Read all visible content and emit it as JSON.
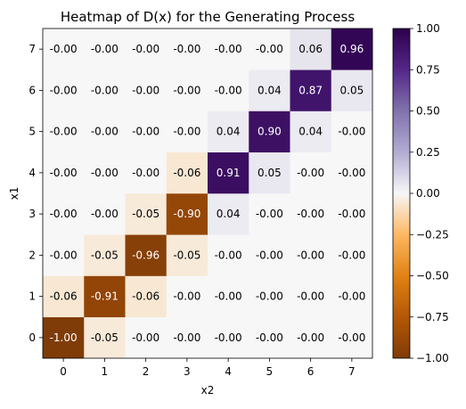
{
  "chart_data": {
    "type": "heatmap",
    "title": "Heatmap of D(x) for the Generating Process",
    "xlabel": "x2",
    "ylabel": "x1",
    "x_categories": [
      "0",
      "1",
      "2",
      "3",
      "4",
      "5",
      "6",
      "7"
    ],
    "y_categories": [
      "0",
      "1",
      "2",
      "3",
      "4",
      "5",
      "6",
      "7"
    ],
    "y_order": "bottom-to-top",
    "rows": [
      {
        "y": "0",
        "values": [
          -1.0,
          -0.05,
          -0.0,
          -0.0,
          -0.0,
          -0.0,
          -0.0,
          -0.0
        ],
        "labels": [
          "-1.00",
          "-0.05",
          "-0.00",
          "-0.00",
          "-0.00",
          "-0.00",
          "-0.00",
          "-0.00"
        ]
      },
      {
        "y": "1",
        "values": [
          -0.06,
          -0.91,
          -0.06,
          -0.0,
          -0.0,
          -0.0,
          -0.0,
          -0.0
        ],
        "labels": [
          "-0.06",
          "-0.91",
          "-0.06",
          "-0.00",
          "-0.00",
          "-0.00",
          "-0.00",
          "-0.00"
        ]
      },
      {
        "y": "2",
        "values": [
          -0.0,
          -0.05,
          -0.96,
          -0.05,
          -0.0,
          -0.0,
          -0.0,
          -0.0
        ],
        "labels": [
          "-0.00",
          "-0.05",
          "-0.96",
          "-0.05",
          "-0.00",
          "-0.00",
          "-0.00",
          "-0.00"
        ]
      },
      {
        "y": "3",
        "values": [
          -0.0,
          -0.0,
          -0.05,
          -0.9,
          0.04,
          -0.0,
          -0.0,
          -0.0
        ],
        "labels": [
          "-0.00",
          "-0.00",
          "-0.05",
          "-0.90",
          "0.04",
          "-0.00",
          "-0.00",
          "-0.00"
        ]
      },
      {
        "y": "4",
        "values": [
          -0.0,
          -0.0,
          -0.0,
          -0.06,
          0.91,
          0.05,
          -0.0,
          -0.0
        ],
        "labels": [
          "-0.00",
          "-0.00",
          "-0.00",
          "-0.06",
          "0.91",
          "0.05",
          "-0.00",
          "-0.00"
        ]
      },
      {
        "y": "5",
        "values": [
          -0.0,
          -0.0,
          -0.0,
          -0.0,
          0.04,
          0.9,
          0.04,
          -0.0
        ],
        "labels": [
          "-0.00",
          "-0.00",
          "-0.00",
          "-0.00",
          "0.04",
          "0.90",
          "0.04",
          "-0.00"
        ]
      },
      {
        "y": "6",
        "values": [
          -0.0,
          -0.0,
          -0.0,
          -0.0,
          -0.0,
          0.04,
          0.87,
          0.05
        ],
        "labels": [
          "-0.00",
          "-0.00",
          "-0.00",
          "-0.00",
          "-0.00",
          "0.04",
          "0.87",
          "0.05"
        ]
      },
      {
        "y": "7",
        "values": [
          -0.0,
          -0.0,
          -0.0,
          -0.0,
          -0.0,
          -0.0,
          0.06,
          0.96
        ],
        "labels": [
          "-0.00",
          "-0.00",
          "-0.00",
          "-0.00",
          "-0.00",
          "-0.00",
          "0.06",
          "0.96"
        ]
      }
    ],
    "colorbar": {
      "range": [
        -1.0,
        1.0
      ],
      "ticks": [
        "1.00",
        "0.75",
        "0.50",
        "0.25",
        "0.00",
        "−0.25",
        "−0.50",
        "−0.75",
        "−1.00"
      ],
      "tick_values": [
        1.0,
        0.75,
        0.5,
        0.25,
        0.0,
        -0.25,
        -0.5,
        -0.75,
        -1.0
      ],
      "colormap": "PuOr"
    },
    "grid": false
  }
}
